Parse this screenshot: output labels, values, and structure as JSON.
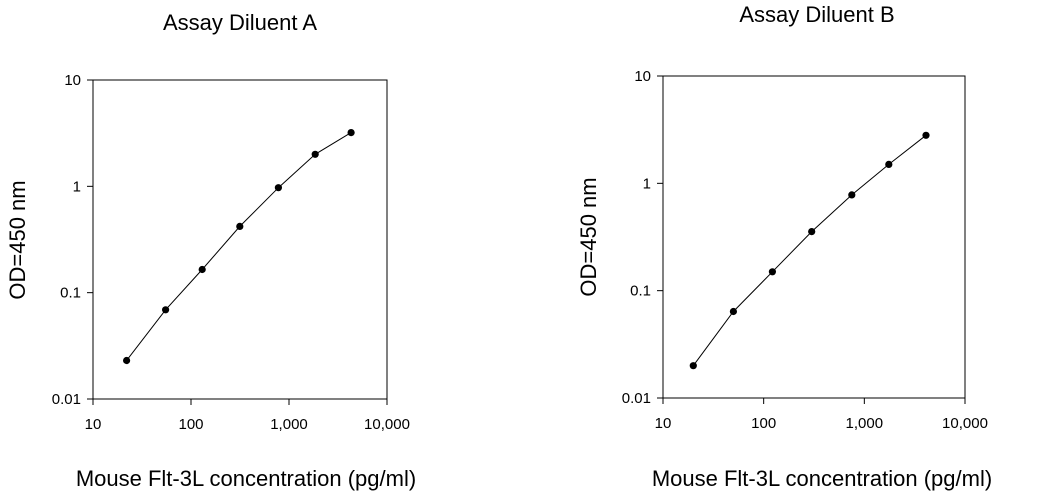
{
  "chart_data": [
    {
      "type": "line",
      "title": "Assay Diluent A",
      "xlabel": "Mouse Flt-3L concentration (pg/ml)",
      "ylabel": "OD=450 nm",
      "x_scale": "log",
      "y_scale": "log",
      "xlim": [
        10,
        10000
      ],
      "ylim": [
        0.01,
        10
      ],
      "x_ticks": [
        10,
        100,
        1000,
        10000
      ],
      "x_tick_labels": [
        "10",
        "100",
        "1,000",
        "10,000"
      ],
      "y_ticks": [
        0.01,
        0.1,
        1,
        10
      ],
      "y_tick_labels": [
        "0.01",
        "0.1",
        "1",
        "10"
      ],
      "grid": false,
      "legend": "none",
      "series": [
        {
          "x": [
            22,
            55,
            130,
            315,
            780,
            1850,
            4300
          ],
          "y": [
            0.023,
            0.069,
            0.165,
            0.42,
            0.97,
            2.0,
            3.2
          ]
        }
      ]
    },
    {
      "type": "line",
      "title": "Assay Diluent B",
      "xlabel": "Mouse Flt-3L concentration (pg/ml)",
      "ylabel": "OD=450 nm",
      "x_scale": "log",
      "y_scale": "log",
      "xlim": [
        10,
        10000
      ],
      "ylim": [
        0.01,
        10
      ],
      "x_ticks": [
        10,
        100,
        1000,
        10000
      ],
      "x_tick_labels": [
        "10",
        "100",
        "1,000",
        "10,000"
      ],
      "y_ticks": [
        0.01,
        0.1,
        1,
        10
      ],
      "y_tick_labels": [
        "0.01",
        "0.1",
        "1",
        "10"
      ],
      "grid": false,
      "legend": "none",
      "series": [
        {
          "x": [
            20,
            50,
            122,
            300,
            750,
            1750,
            4100
          ],
          "y": [
            0.02,
            0.064,
            0.15,
            0.355,
            0.78,
            1.5,
            2.8
          ]
        }
      ]
    }
  ],
  "colors": {
    "line": "#000000",
    "marker": "#000000",
    "frame": "#000000"
  }
}
